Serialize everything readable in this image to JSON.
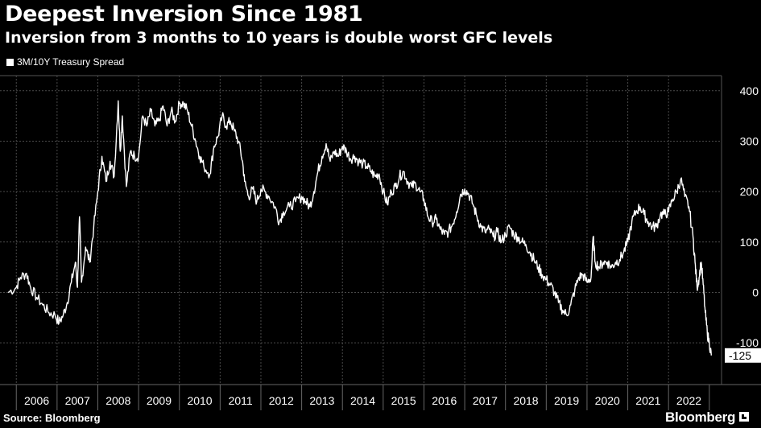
{
  "chart_data": {
    "type": "line",
    "title": "Deepest Inversion Since 1981",
    "subtitle": "Inversion from 3 months to 10 years is double worst GFC levels",
    "series": [
      {
        "name": "3M/10Y Treasury Spread",
        "color": "#ffffff",
        "points": [
          [
            2005.8,
            0
          ],
          [
            2006.0,
            10
          ],
          [
            2006.1,
            30
          ],
          [
            2006.25,
            38
          ],
          [
            2006.35,
            10
          ],
          [
            2006.5,
            -10
          ],
          [
            2006.65,
            -25
          ],
          [
            2006.8,
            -40
          ],
          [
            2006.95,
            -45
          ],
          [
            2007.05,
            -60
          ],
          [
            2007.15,
            -45
          ],
          [
            2007.25,
            -20
          ],
          [
            2007.35,
            20
          ],
          [
            2007.45,
            60
          ],
          [
            2007.5,
            10
          ],
          [
            2007.55,
            150
          ],
          [
            2007.6,
            20
          ],
          [
            2007.7,
            90
          ],
          [
            2007.8,
            60
          ],
          [
            2007.9,
            130
          ],
          [
            2008.0,
            200
          ],
          [
            2008.1,
            270
          ],
          [
            2008.2,
            220
          ],
          [
            2008.3,
            260
          ],
          [
            2008.4,
            230
          ],
          [
            2008.5,
            380
          ],
          [
            2008.55,
            280
          ],
          [
            2008.6,
            350
          ],
          [
            2008.7,
            210
          ],
          [
            2008.8,
            280
          ],
          [
            2008.9,
            270
          ],
          [
            2009.0,
            270
          ],
          [
            2009.1,
            350
          ],
          [
            2009.2,
            330
          ],
          [
            2009.3,
            360
          ],
          [
            2009.4,
            330
          ],
          [
            2009.5,
            340
          ],
          [
            2009.6,
            370
          ],
          [
            2009.7,
            330
          ],
          [
            2009.8,
            360
          ],
          [
            2009.9,
            340
          ],
          [
            2010.0,
            375
          ],
          [
            2010.1,
            375
          ],
          [
            2010.2,
            360
          ],
          [
            2010.3,
            330
          ],
          [
            2010.4,
            300
          ],
          [
            2010.5,
            270
          ],
          [
            2010.6,
            250
          ],
          [
            2010.75,
            235
          ],
          [
            2010.85,
            290
          ],
          [
            2010.95,
            310
          ],
          [
            2011.05,
            350
          ],
          [
            2011.15,
            330
          ],
          [
            2011.25,
            340
          ],
          [
            2011.35,
            320
          ],
          [
            2011.45,
            300
          ],
          [
            2011.55,
            260
          ],
          [
            2011.6,
            220
          ],
          [
            2011.7,
            190
          ],
          [
            2011.8,
            205
          ],
          [
            2011.9,
            180
          ],
          [
            2012.0,
            205
          ],
          [
            2012.1,
            200
          ],
          [
            2012.2,
            190
          ],
          [
            2012.35,
            170
          ],
          [
            2012.45,
            140
          ],
          [
            2012.55,
            160
          ],
          [
            2012.7,
            170
          ],
          [
            2012.85,
            180
          ],
          [
            2013.0,
            190
          ],
          [
            2013.1,
            180
          ],
          [
            2013.2,
            170
          ],
          [
            2013.3,
            200
          ],
          [
            2013.4,
            240
          ],
          [
            2013.5,
            270
          ],
          [
            2013.6,
            295
          ],
          [
            2013.7,
            260
          ],
          [
            2013.8,
            280
          ],
          [
            2013.9,
            270
          ],
          [
            2014.0,
            290
          ],
          [
            2014.1,
            280
          ],
          [
            2014.2,
            265
          ],
          [
            2014.3,
            270
          ],
          [
            2014.4,
            260
          ],
          [
            2014.5,
            255
          ],
          [
            2014.6,
            250
          ],
          [
            2014.7,
            240
          ],
          [
            2014.8,
            230
          ],
          [
            2014.9,
            235
          ],
          [
            2015.0,
            200
          ],
          [
            2015.1,
            175
          ],
          [
            2015.2,
            200
          ],
          [
            2015.3,
            210
          ],
          [
            2015.4,
            230
          ],
          [
            2015.5,
            240
          ],
          [
            2015.6,
            220
          ],
          [
            2015.7,
            210
          ],
          [
            2015.8,
            215
          ],
          [
            2015.9,
            200
          ],
          [
            2016.0,
            185
          ],
          [
            2016.1,
            150
          ],
          [
            2016.2,
            140
          ],
          [
            2016.3,
            145
          ],
          [
            2016.4,
            125
          ],
          [
            2016.5,
            115
          ],
          [
            2016.6,
            120
          ],
          [
            2016.7,
            135
          ],
          [
            2016.8,
            160
          ],
          [
            2016.9,
            195
          ],
          [
            2017.0,
            205
          ],
          [
            2017.1,
            195
          ],
          [
            2017.2,
            175
          ],
          [
            2017.3,
            150
          ],
          [
            2017.4,
            130
          ],
          [
            2017.5,
            120
          ],
          [
            2017.6,
            125
          ],
          [
            2017.7,
            110
          ],
          [
            2017.8,
            120
          ],
          [
            2017.9,
            100
          ],
          [
            2018.0,
            115
          ],
          [
            2018.1,
            130
          ],
          [
            2018.2,
            115
          ],
          [
            2018.3,
            110
          ],
          [
            2018.4,
            100
          ],
          [
            2018.5,
            95
          ],
          [
            2018.6,
            80
          ],
          [
            2018.7,
            65
          ],
          [
            2018.8,
            50
          ],
          [
            2018.9,
            35
          ],
          [
            2019.0,
            25
          ],
          [
            2019.1,
            15
          ],
          [
            2019.2,
            0
          ],
          [
            2019.3,
            -20
          ],
          [
            2019.4,
            -35
          ],
          [
            2019.5,
            -45
          ],
          [
            2019.6,
            -25
          ],
          [
            2019.7,
            5
          ],
          [
            2019.8,
            30
          ],
          [
            2019.9,
            35
          ],
          [
            2020.0,
            20
          ],
          [
            2020.1,
            30
          ],
          [
            2020.15,
            110
          ],
          [
            2020.2,
            60
          ],
          [
            2020.3,
            50
          ],
          [
            2020.4,
            60
          ],
          [
            2020.5,
            60
          ],
          [
            2020.6,
            50
          ],
          [
            2020.7,
            60
          ],
          [
            2020.8,
            65
          ],
          [
            2020.9,
            80
          ],
          [
            2021.0,
            100
          ],
          [
            2021.1,
            140
          ],
          [
            2021.2,
            160
          ],
          [
            2021.3,
            170
          ],
          [
            2021.4,
            155
          ],
          [
            2021.5,
            140
          ],
          [
            2021.6,
            130
          ],
          [
            2021.7,
            130
          ],
          [
            2021.8,
            155
          ],
          [
            2021.9,
            155
          ],
          [
            2022.0,
            160
          ],
          [
            2022.1,
            185
          ],
          [
            2022.2,
            200
          ],
          [
            2022.3,
            225
          ],
          [
            2022.4,
            190
          ],
          [
            2022.5,
            170
          ],
          [
            2022.6,
            110
          ],
          [
            2022.65,
            60
          ],
          [
            2022.7,
            10
          ],
          [
            2022.75,
            30
          ],
          [
            2022.8,
            60
          ],
          [
            2022.85,
            15
          ],
          [
            2022.9,
            -40
          ],
          [
            2022.95,
            -80
          ],
          [
            2023.0,
            -100
          ],
          [
            2023.05,
            -125
          ]
        ]
      }
    ],
    "last_value_label": "-125",
    "x_ticks": [
      "2006",
      "2007",
      "2008",
      "2009",
      "2010",
      "2011",
      "2012",
      "2013",
      "2014",
      "2015",
      "2016",
      "2017",
      "2018",
      "2019",
      "2020",
      "2021",
      "2022"
    ],
    "x_tick_values": [
      2006,
      2007,
      2008,
      2009,
      2010,
      2011,
      2012,
      2013,
      2014,
      2015,
      2016,
      2017,
      2018,
      2019,
      2020,
      2021,
      2022
    ],
    "y_ticks": [
      "400",
      "300",
      "200",
      "100",
      "0",
      "-100"
    ],
    "y_tick_values": [
      400,
      300,
      200,
      100,
      0,
      -100
    ],
    "xlim": [
      2005.6,
      2023.3
    ],
    "ylim": [
      -170,
      430
    ],
    "grid": true,
    "legend_position": "top-left"
  },
  "footer": {
    "source": "Source: Bloomberg",
    "brand": "Bloomberg"
  }
}
